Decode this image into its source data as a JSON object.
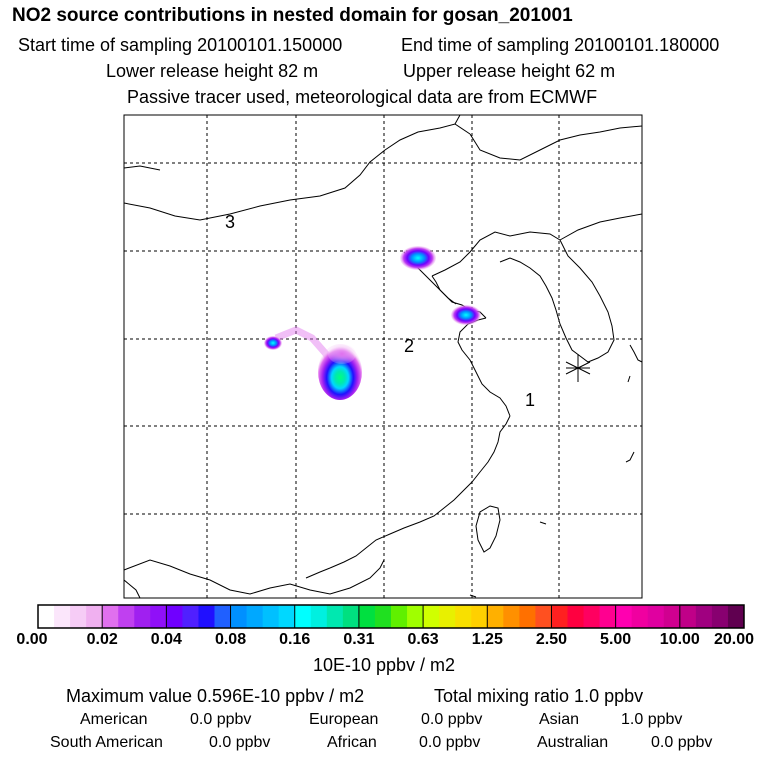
{
  "title": "NO2 source contributions in nested domain for gosan_201001",
  "sampling": {
    "start": "Start time of sampling 20100101.150000",
    "end": "End time of sampling 20100101.180000"
  },
  "release": {
    "lower": "Lower release height   82 m",
    "upper": "Upper release height   62 m"
  },
  "note": "Passive tracer used, meteorological data are from ECMWF",
  "map_labels": {
    "label_1": "1",
    "label_2": "2",
    "label_3": "3"
  },
  "colorbar": {
    "ticks": [
      "0.00",
      "0.02",
      "0.04",
      "0.08",
      "0.16",
      "0.31",
      "0.63",
      "1.25",
      "2.50",
      "5.00",
      "10.00",
      "20.00"
    ],
    "unit": "10E-10 ppbv / m2",
    "colors": [
      "#ffffff",
      "#fbe6fb",
      "#f6ccf6",
      "#f0b0f0",
      "#e070ee",
      "#c040f0",
      "#a020f0",
      "#9010f8",
      "#7000ff",
      "#5020ff",
      "#2010ff",
      "#2060ff",
      "#0090ff",
      "#00a8ff",
      "#00c0ff",
      "#00d8ff",
      "#00ffff",
      "#00f0e0",
      "#00e8b0",
      "#00e080",
      "#00e040",
      "#20e020",
      "#60f000",
      "#a0ff00",
      "#d0ff00",
      "#e8f000",
      "#f8e000",
      "#ffd000",
      "#ffb000",
      "#ff9000",
      "#ff7000",
      "#ff5020",
      "#ff2020",
      "#ff0040",
      "#ff0060",
      "#ff0090",
      "#ff00b0",
      "#f000a0",
      "#e000a0",
      "#d00090",
      "#c00088",
      "#a00080",
      "#880070",
      "#600050"
    ]
  },
  "summary": {
    "max_value": "Maximum value  0.596E-10 ppbv / m2",
    "total": "Total mixing ratio        1.0 ppbv"
  },
  "groups": [
    {
      "name": "American",
      "value": "0.0 ppbv"
    },
    {
      "name": "European",
      "value": "0.0 ppbv"
    },
    {
      "name": "Asian",
      "value": "1.0 ppbv"
    },
    {
      "name": "South American",
      "value": "0.0 ppbv"
    },
    {
      "name": "African",
      "value": "0.0 ppbv"
    },
    {
      "name": "Australian",
      "value": "0.0 ppbv"
    }
  ],
  "receptor_marker": "receptor-star-icon"
}
